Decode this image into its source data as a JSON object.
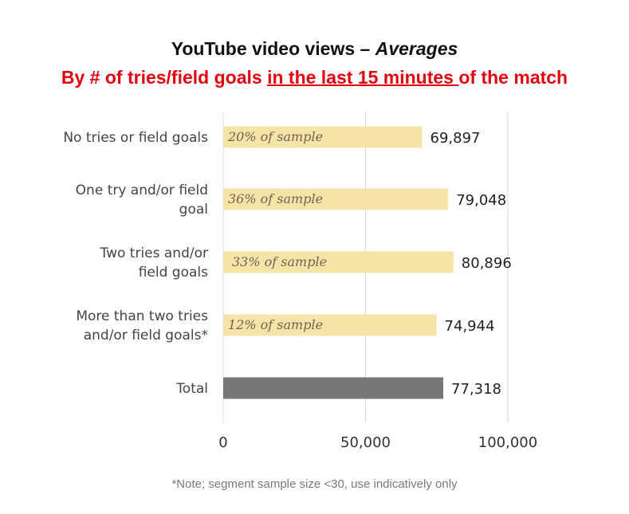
{
  "chart_data": {
    "type": "bar",
    "orientation": "horizontal",
    "title": "YouTube video views – Averages",
    "title_plain": "YouTube video views – ",
    "title_italic": "Averages",
    "subtitle_parts": {
      "before": "By # of tries/field goals ",
      "underlined": "in the last 15 minutes ",
      "after": "of the match"
    },
    "categories": [
      "No tries or field goals",
      "One try and/or field goal",
      "Two tries and/or field goals",
      "More than two tries and/or field goals*",
      "Total"
    ],
    "category_lines": [
      [
        "No tries or field goals"
      ],
      [
        "One try and/or field",
        "goal"
      ],
      [
        "Two tries and/or",
        "field goals"
      ],
      [
        "More than two tries",
        "and/or field goals*"
      ],
      [
        "Total"
      ]
    ],
    "values": [
      69897,
      79048,
      80896,
      74944,
      77318
    ],
    "value_labels": [
      "69,897",
      "79,048",
      "80,896",
      "74,944",
      "77,318"
    ],
    "inner_labels": [
      "20% of sample",
      "36% of sample",
      "33% of sample",
      "12% of sample",
      ""
    ],
    "xlim": [
      0,
      100000
    ],
    "ticks": [
      0,
      50000,
      100000
    ],
    "tick_labels": [
      "0",
      "50,000",
      "100,000"
    ],
    "grid": true,
    "colors": {
      "segment": "#f5e3a8",
      "total": "#777777",
      "subtitle": "#e3000f"
    },
    "footnote": "*Note; segment sample size <30, use indicatively only"
  }
}
